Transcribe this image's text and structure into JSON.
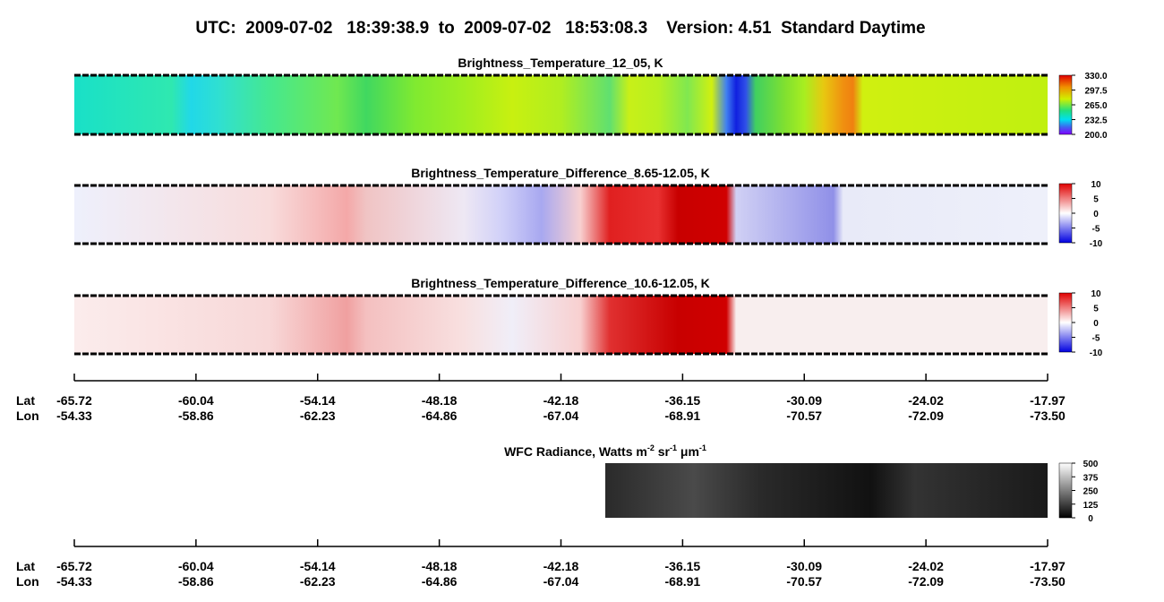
{
  "header": {
    "title": "UTC:  2009-07-02   18:39:38.9  to  2009-07-02   18:53:08.3    Version: 4.51  Standard Daytime"
  },
  "panels": [
    {
      "title": "Brightness_Temperature_12_05, K",
      "colorbar": [
        "330.0",
        "297.5",
        "265.0",
        "232.5",
        "200.0"
      ]
    },
    {
      "title": "Brightness_Temperature_Difference_8.65-12.05, K",
      "colorbar": [
        "10",
        "5",
        "0",
        "-5",
        "-10"
      ]
    },
    {
      "title": "Brightness_Temperature_Difference_10.6-12.05, K",
      "colorbar": [
        "10",
        "5",
        "0",
        "-5",
        "-10"
      ]
    }
  ],
  "wfc": {
    "title": {
      "a": "WFC Radiance, Watts m",
      "b": "-2",
      "c": " sr",
      "d": "-1",
      "e": " μm",
      "f": "-1"
    },
    "colorbar": [
      "500",
      "375",
      "250",
      "125",
      "0"
    ]
  },
  "axes": [
    {
      "lat_label": "Lat",
      "lon_label": "Lon",
      "lat": [
        "-65.72",
        "-60.04",
        "-54.14",
        "-48.18",
        "-42.18",
        "-36.15",
        "-30.09",
        "-24.02",
        "-17.97"
      ],
      "lon": [
        "-54.33",
        "-58.86",
        "-62.23",
        "-64.86",
        "-67.04",
        "-68.91",
        "-70.57",
        "-72.09",
        "-73.50"
      ]
    },
    {
      "lat_label": "Lat",
      "lon_label": "Lon",
      "lat": [
        "-65.72",
        "-60.04",
        "-54.14",
        "-48.18",
        "-42.18",
        "-36.15",
        "-30.09",
        "-24.02",
        "-17.97"
      ],
      "lon": [
        "-54.33",
        "-58.86",
        "-62.23",
        "-64.86",
        "-67.04",
        "-68.91",
        "-70.57",
        "-72.09",
        "-73.50"
      ]
    }
  ]
}
